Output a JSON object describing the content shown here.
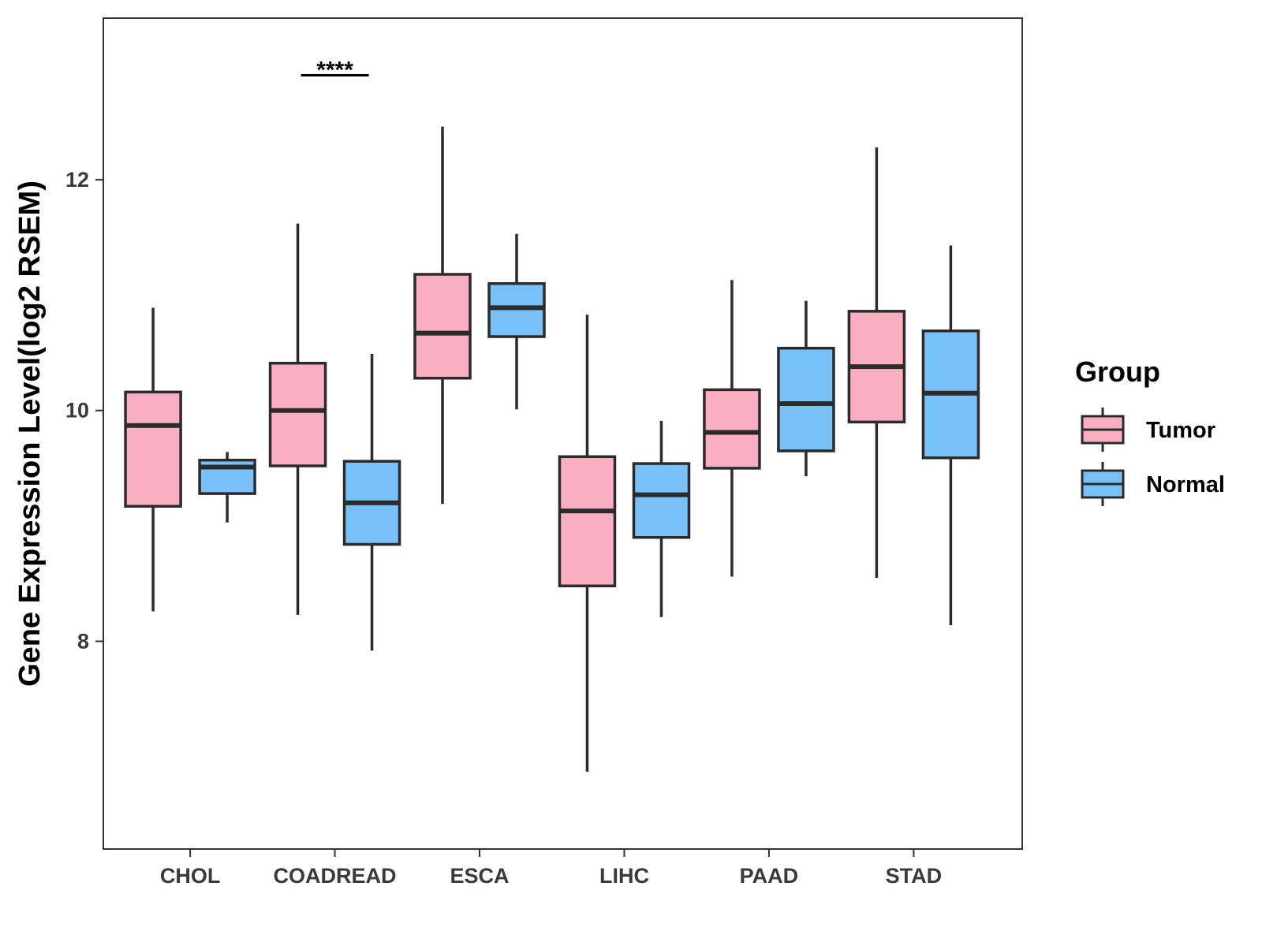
{
  "chart_data": {
    "type": "boxplot",
    "title": "",
    "xlabel": "",
    "ylabel": "Gene Expression Level(log2 RSEM)",
    "ylim": [
      6.2,
      13.4
    ],
    "yticks": [
      8,
      10,
      12
    ],
    "ytick_labels": [
      "8",
      "10",
      "12"
    ],
    "grid": false,
    "legend_position": "right",
    "legend_title": "Group",
    "categories": [
      "CHOL",
      "COADREAD",
      "ESCA",
      "LIHC",
      "PAAD",
      "STAD"
    ],
    "series": [
      {
        "name": "Tumor",
        "color": "#F9AFC1",
        "boxes": [
          {
            "whisker_low": 8.26,
            "q1": 9.17,
            "median": 9.87,
            "q3": 10.16,
            "whisker_high": 10.89
          },
          {
            "whisker_low": 8.23,
            "q1": 9.52,
            "median": 10.0,
            "q3": 10.41,
            "whisker_high": 11.62
          },
          {
            "whisker_low": 9.19,
            "q1": 10.28,
            "median": 10.67,
            "q3": 11.18,
            "whisker_high": 12.46
          },
          {
            "whisker_low": 6.87,
            "q1": 8.48,
            "median": 9.13,
            "q3": 9.6,
            "whisker_high": 10.83
          },
          {
            "whisker_low": 8.56,
            "q1": 9.5,
            "median": 9.81,
            "q3": 10.18,
            "whisker_high": 11.13
          },
          {
            "whisker_low": 8.55,
            "q1": 9.9,
            "median": 10.38,
            "q3": 10.86,
            "whisker_high": 12.28
          }
        ]
      },
      {
        "name": "Normal",
        "color": "#77C1F8",
        "boxes": [
          {
            "whisker_low": 9.03,
            "q1": 9.28,
            "median": 9.51,
            "q3": 9.57,
            "whisker_high": 9.64
          },
          {
            "whisker_low": 7.92,
            "q1": 8.84,
            "median": 9.2,
            "q3": 9.56,
            "whisker_high": 10.49
          },
          {
            "whisker_low": 10.01,
            "q1": 10.64,
            "median": 10.89,
            "q3": 11.1,
            "whisker_high": 11.53
          },
          {
            "whisker_low": 8.21,
            "q1": 8.9,
            "median": 9.27,
            "q3": 9.54,
            "whisker_high": 9.91
          },
          {
            "whisker_low": 9.43,
            "q1": 9.65,
            "median": 10.06,
            "q3": 10.54,
            "whisker_high": 10.95
          },
          {
            "whisker_low": 8.14,
            "q1": 9.59,
            "median": 10.15,
            "q3": 10.69,
            "whisker_high": 11.43
          }
        ]
      }
    ],
    "annotations": [
      {
        "category": "COADREAD",
        "text": "****",
        "y": 12.98
      }
    ]
  }
}
